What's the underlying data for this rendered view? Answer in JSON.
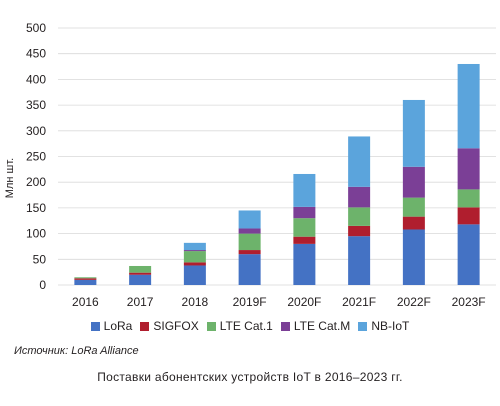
{
  "chart_data": {
    "type": "bar",
    "stacked": true,
    "ylabel": "Млн шт.",
    "ylim": [
      0,
      500
    ],
    "yticks": [
      0,
      50,
      100,
      150,
      200,
      250,
      300,
      350,
      400,
      450,
      500
    ],
    "grid": true,
    "legend_position": "bottom",
    "categories": [
      "2016",
      "2017",
      "2018",
      "2019F",
      "2020F",
      "2021F",
      "2022F",
      "2023F"
    ],
    "series": [
      {
        "name": "LoRa",
        "color": "#4472c4",
        "values": [
          10,
          20,
          38,
          60,
          80,
          95,
          108,
          118
        ]
      },
      {
        "name": "SIGFOX",
        "color": "#b01e2e",
        "values": [
          3,
          4,
          6,
          8,
          14,
          20,
          25,
          33
        ]
      },
      {
        "name": "LTE Cat.1",
        "color": "#6db36b",
        "values": [
          2,
          13,
          22,
          32,
          36,
          36,
          37,
          35
        ]
      },
      {
        "name": "LTE Cat.M",
        "color": "#7b3f96",
        "values": [
          0,
          0,
          2,
          10,
          22,
          40,
          60,
          80
        ]
      },
      {
        "name": "NB-IoT",
        "color": "#5ba4dc",
        "values": [
          0,
          0,
          14,
          35,
          64,
          98,
          130,
          164
        ]
      }
    ]
  },
  "source": "Источник: LoRa Alliance",
  "caption": "Поставки абонентских устройств IoT в 2016–2023 гг."
}
